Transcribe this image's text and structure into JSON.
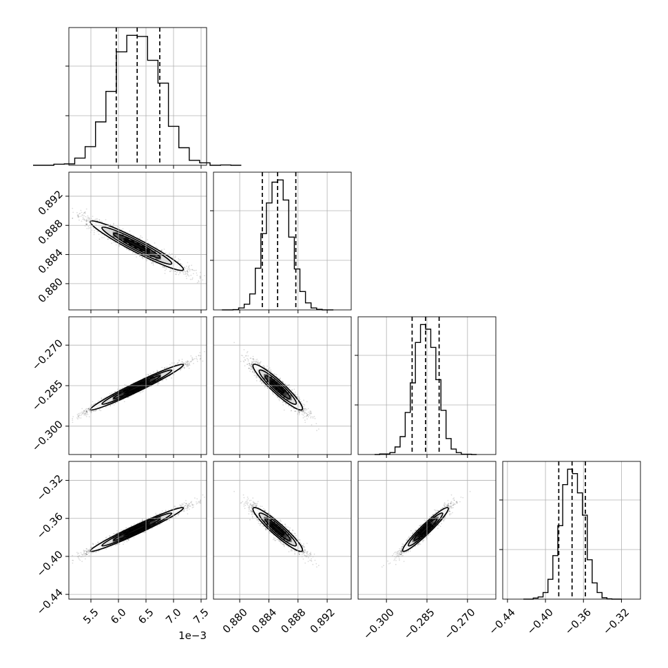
{
  "chart_data": {
    "type": "corner",
    "parameters": [
      {
        "range": [
          0.0051,
          0.0076
        ],
        "ticks": [
          0.0055,
          0.006,
          0.0065,
          0.007,
          0.0075
        ],
        "tick_labels": [
          "5.5",
          "6.0",
          "6.5",
          "7.0",
          "7.5"
        ],
        "offset_text": "1e−3",
        "mean": 0.00634,
        "sd": 0.00042,
        "quantiles": [
          0.00596,
          0.00634,
          0.00675
        ]
      },
      {
        "range": [
          0.8764,
          0.8953
        ],
        "ticks": [
          0.88,
          0.884,
          0.888,
          0.892
        ],
        "tick_labels": [
          "0.880",
          "0.884",
          "0.888",
          "0.892"
        ],
        "offset_text": "",
        "mean": 0.8852,
        "sd": 0.0017,
        "quantiles": [
          0.8831,
          0.8852,
          0.8877
        ]
      },
      {
        "range": [
          -0.3105,
          -0.2595
        ],
        "ticks": [
          -0.3,
          -0.285,
          -0.27
        ],
        "tick_labels": [
          "−0.300",
          "−0.285",
          "−0.270"
        ],
        "offset_text": "",
        "mean": -0.2855,
        "sd": 0.0042,
        "quantiles": [
          -0.2905,
          -0.2855,
          -0.2805
        ]
      },
      {
        "range": [
          -0.445,
          -0.3
        ],
        "ticks": [
          -0.44,
          -0.4,
          -0.36,
          -0.32
        ],
        "tick_labels": [
          "−0.44",
          "−0.40",
          "−0.36",
          "−0.32"
        ],
        "offset_text": "",
        "mean": -0.3715,
        "sd": 0.0115,
        "quantiles": [
          -0.386,
          -0.372,
          -0.358
        ]
      }
    ],
    "hist_bins": 20,
    "contour_levels_sigma": [
      0.5,
      1.0,
      1.5,
      2.0
    ],
    "grid": true
  }
}
